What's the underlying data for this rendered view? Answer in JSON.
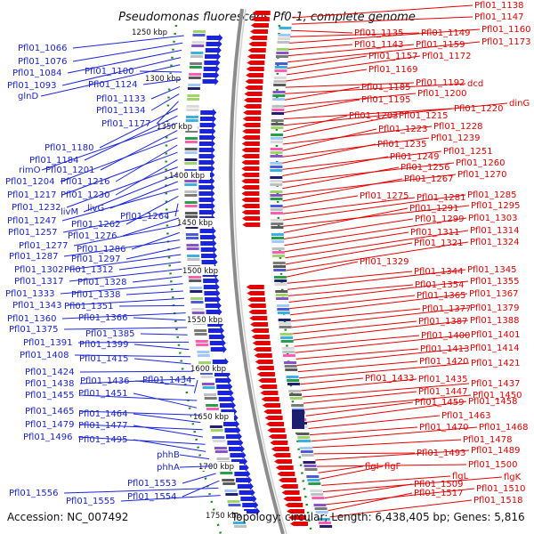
{
  "title": "Pseudomonas fluorescens Pf0-1, complete genome",
  "footer": {
    "accession": "Accession: NC_007492",
    "info": "Topology: circular; Length: 6,438,405 bp; Genes: 5,816"
  },
  "scale_labels": [
    "1250 kbp",
    "1300 kbp",
    "1350 kbp",
    "1400 kbp",
    "1450 kbp",
    "1500 kbp",
    "1550 kbp",
    "1600 kbp",
    "1650 kbp",
    "1700 kbp",
    "1750 kbp"
  ],
  "left_labels": [
    "Pfl01_1066",
    "Pfl01_1076",
    "Pfl01_1084",
    "Pfl01_1093",
    "glnD",
    "Pfl01_1100",
    "Pfl01_1124",
    "Pfl01_1133",
    "Pfl01_1134",
    "Pfl01_1177",
    "Pfl01_1180",
    "Pfl01_1184",
    "rimO",
    "Pfl01_1201",
    "Pfl01_1204",
    "Pfl01_1216",
    "Pfl01_1217",
    "Pfl01_1230",
    "Pfl01_1232",
    "livM",
    "livG",
    "Pfl01_1247",
    "Pfl01_1262",
    "Pfl01_1264",
    "Pfl01_1257",
    "Pfl01_1276",
    "Pfl01_1277",
    "Pfl01_1286",
    "Pfl01_1287",
    "Pfl01_1297",
    "Pfl01_1302",
    "Pfl01_1312",
    "Pfl01_1317",
    "Pfl01_1328",
    "Pfl01_1333",
    "Pfl01_1338",
    "Pfl01_1343",
    "Pfl01_1351",
    "Pfl01_1360",
    "Pfl01_1366",
    "Pfl01_1375",
    "Pfl01_1385",
    "Pfl01_1391",
    "Pfl01_1399",
    "Pfl01_1408",
    "Pfl01_1415",
    "Pfl01_1424",
    "Pfl01_1438",
    "Pfl01_1436",
    "Pfl01_1434",
    "Pfl01_1455",
    "Pfl01_1451",
    "Pfl01_1465",
    "Pfl01_1464",
    "Pfl01_1479",
    "Pfl01_1477",
    "Pfl01_1496",
    "Pfl01_1495",
    "phhB",
    "phhA",
    "Pfl01_1553",
    "Pfl01_1554",
    "Pfl01_1556",
    "Pfl01_1555"
  ],
  "right_labels": [
    "Pfl01_1138",
    "Pfl01_1147",
    "Pfl01_1135",
    "Pfl01_1149",
    "Pfl01_1160",
    "Pfl01_1143",
    "Pfl01_1159",
    "Pfl01_1173",
    "Pfl01_1157",
    "Pfl01_1172",
    "Pfl01_1169",
    "Pfl01_1192",
    "dcd",
    "Pfl01_1185",
    "Pfl01_1200",
    "Pfl01_1195",
    "Pfl01_1220",
    "dinG",
    "Pfl01_1203",
    "Pfl01_1215",
    "Pfl01_1228",
    "Pfl01_1223",
    "Pfl01_1239",
    "Pfl01_1235",
    "Pfl01_1251",
    "Pfl01_1249",
    "Pfl01_1260",
    "Pfl01_1256",
    "Pfl01_1270",
    "Pfl01_1267",
    "Pfl01_1275",
    "Pfl01_1281",
    "Pfl01_1285",
    "Pfl01_1295",
    "Pfl01_1291",
    "Pfl01_1299",
    "Pfl01_1303",
    "Pfl01_1311",
    "Pfl01_1314",
    "Pfl01_1321",
    "Pfl01_1324",
    "Pfl01_1329",
    "Pfl01_1344",
    "Pfl01_1345",
    "Pfl01_1354",
    "Pfl01_1355",
    "Pfl01_1365",
    "Pfl01_1367",
    "Pfl01_1377",
    "Pfl01_1379",
    "Pfl01_1387",
    "Pfl01_1388",
    "Pfl01_1400",
    "Pfl01_1401",
    "Pfl01_1413",
    "Pfl01_1414",
    "Pfl01_1420",
    "Pfl01_1421",
    "Pfl01_1433",
    "Pfl01_1435",
    "Pfl01_1437",
    "Pfl01_1447",
    "Pfl01_1450",
    "Pfl01_1459",
    "Pfl01_1458",
    "Pfl01_1463",
    "Pfl01_1470",
    "Pfl01_1468",
    "Pfl01_1478",
    "Pfl01_1493",
    "Pfl01_1489",
    "Pfl01_1500",
    "flgI",
    "flgF",
    "flgL",
    "flgK",
    "Pfl01_1509",
    "Pfl01_1510",
    "Pfl01_1517",
    "Pfl01_1518"
  ],
  "colors": {
    "forward_genes": "#1a24dd",
    "reverse_genes": "#e60000",
    "backbone": "#888888",
    "scale_ticks": "#1f8a1f",
    "left_text": "#1a24cc",
    "right_text": "#e00000"
  }
}
